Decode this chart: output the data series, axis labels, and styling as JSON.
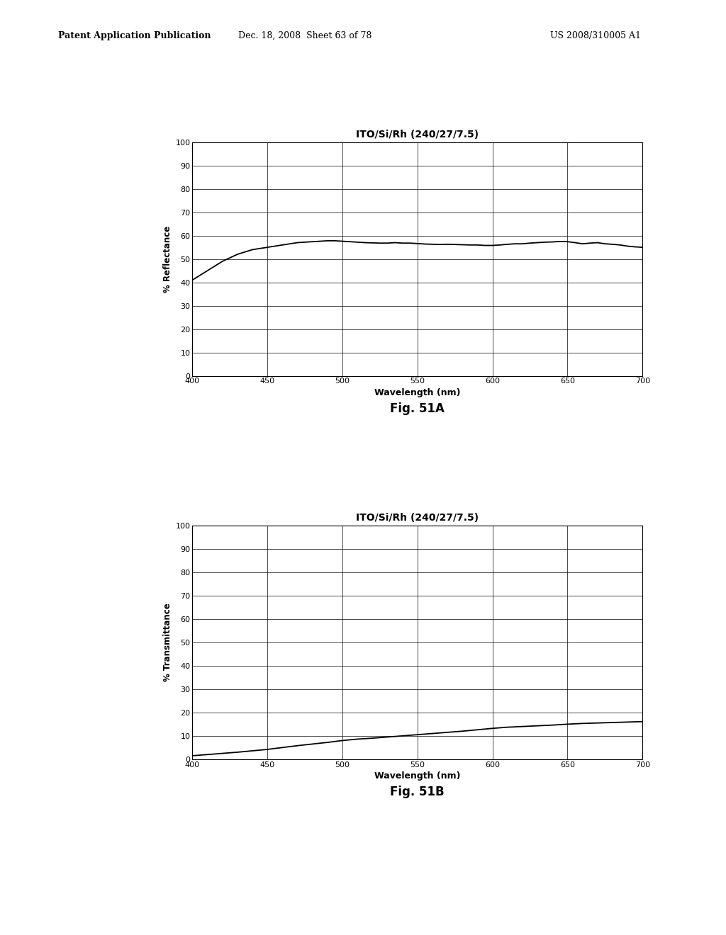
{
  "title_top": "ITO/Si/Rh (240/27/7.5)",
  "title_bottom": "ITO/Si/Rh (240/27/7.5)",
  "xlabel": "Wavelength (nm)",
  "ylabel_top": "% Reflectance",
  "ylabel_bottom": "% Transmittance",
  "fig_caption_top": "Fig. 51A",
  "fig_caption_bottom": "Fig. 51B",
  "header_left": "Patent Application Publication",
  "header_mid": "Dec. 18, 2008  Sheet 63 of 78",
  "header_right": "US 2008/310005 A1",
  "xlim": [
    400,
    700
  ],
  "ylim": [
    0,
    100
  ],
  "xticks": [
    400,
    450,
    500,
    550,
    600,
    650,
    700
  ],
  "yticks": [
    0,
    10,
    20,
    30,
    40,
    50,
    60,
    70,
    80,
    90,
    100
  ],
  "background_color": "#ffffff",
  "line_color": "#000000",
  "reflectance_x": [
    400,
    405,
    410,
    415,
    420,
    425,
    430,
    435,
    440,
    445,
    450,
    455,
    460,
    465,
    470,
    475,
    480,
    485,
    490,
    495,
    500,
    505,
    510,
    515,
    520,
    525,
    530,
    535,
    540,
    545,
    550,
    555,
    560,
    565,
    570,
    575,
    580,
    585,
    590,
    595,
    600,
    605,
    610,
    615,
    620,
    625,
    630,
    635,
    640,
    645,
    650,
    655,
    660,
    665,
    670,
    675,
    680,
    685,
    690,
    695,
    700
  ],
  "reflectance_y": [
    41,
    43,
    45,
    47,
    49,
    50.5,
    52,
    53,
    54,
    54.5,
    55,
    55.5,
    56,
    56.5,
    57,
    57.2,
    57.4,
    57.6,
    57.8,
    57.8,
    57.6,
    57.4,
    57.2,
    57.0,
    56.9,
    56.8,
    56.8,
    57.0,
    56.8,
    56.8,
    56.6,
    56.4,
    56.3,
    56.2,
    56.3,
    56.2,
    56.1,
    56.0,
    56.0,
    55.8,
    55.8,
    56.0,
    56.3,
    56.5,
    56.5,
    56.8,
    57.0,
    57.2,
    57.3,
    57.5,
    57.4,
    57.0,
    56.5,
    56.8,
    57.0,
    56.5,
    56.3,
    56.0,
    55.5,
    55.2,
    55.0
  ],
  "transmittance_x": [
    400,
    410,
    420,
    430,
    440,
    450,
    460,
    470,
    480,
    490,
    500,
    510,
    520,
    530,
    540,
    550,
    560,
    570,
    580,
    590,
    600,
    610,
    620,
    630,
    640,
    650,
    660,
    670,
    680,
    690,
    700
  ],
  "transmittance_y": [
    1.5,
    2.0,
    2.5,
    3.0,
    3.6,
    4.2,
    5.0,
    5.8,
    6.5,
    7.2,
    8.0,
    8.6,
    9.0,
    9.5,
    10.0,
    10.5,
    11.0,
    11.5,
    12.0,
    12.6,
    13.2,
    13.7,
    14.0,
    14.3,
    14.6,
    15.0,
    15.3,
    15.5,
    15.7,
    15.9,
    16.1
  ]
}
